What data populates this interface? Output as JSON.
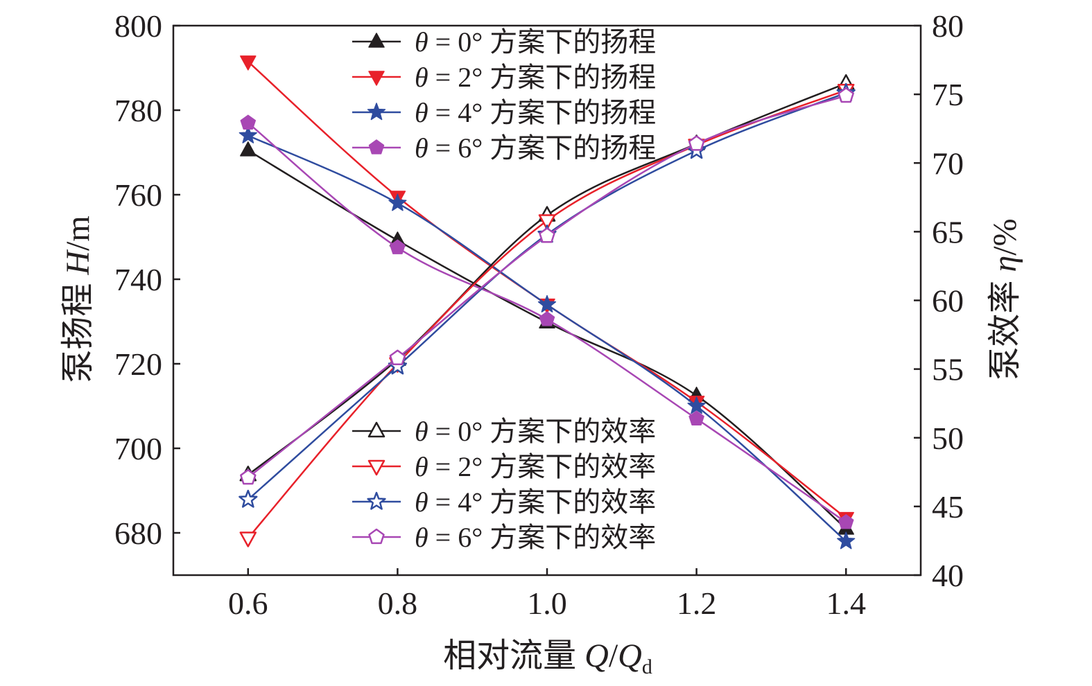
{
  "chart_data": {
    "type": "line",
    "x_label": {
      "prefix": "相对流量 ",
      "var1": "Q",
      "slash": "/",
      "var2": "Q",
      "sub": "d"
    },
    "y_left_label": {
      "prefix": "泵扬程 ",
      "var": "H",
      "unit": "/m"
    },
    "y_right_label": {
      "prefix": "泵效率 ",
      "var": "η",
      "unit": "/%"
    },
    "x": [
      0.6,
      0.8,
      1.0,
      1.2,
      1.4
    ],
    "x_ticks": [
      "0.6",
      "0.8",
      "1.0",
      "1.2",
      "1.4"
    ],
    "xlim": [
      0.5,
      1.5
    ],
    "y_left_ticks": [
      "680",
      "700",
      "720",
      "740",
      "760",
      "780",
      "800"
    ],
    "y_left_lim": [
      670,
      800
    ],
    "y_right_ticks": [
      "40",
      "45",
      "50",
      "55",
      "60",
      "65",
      "70",
      "75",
      "80"
    ],
    "y_right_lim": [
      40,
      80
    ],
    "head_series": [
      {
        "angle": "0°",
        "label": "方案下的扬程",
        "color": "#231f20",
        "marker": "triangle-up-filled",
        "values": [
          770.5,
          749.2,
          729.8,
          712.5,
          681.0
        ]
      },
      {
        "angle": "2°",
        "label": "方案下的扬程",
        "color": "#e8212a",
        "marker": "triangle-down-filled",
        "values": [
          791.5,
          759.5,
          734.0,
          711.0,
          683.5
        ]
      },
      {
        "angle": "4°",
        "label": "方案下的扬程",
        "color": "#2f4c9f",
        "marker": "star-filled",
        "values": [
          774.0,
          758.0,
          734.0,
          710.0,
          678.0
        ]
      },
      {
        "angle": "6°",
        "label": "方案下的扬程",
        "color": "#a847b4",
        "marker": "pentagon-filled",
        "values": [
          777.0,
          747.5,
          730.5,
          707.0,
          682.5
        ]
      }
    ],
    "efficiency_series": [
      {
        "angle": "0°",
        "label": "方案下的效率",
        "color": "#231f20",
        "marker": "triangle-up-open",
        "values": [
          47.3,
          55.7,
          66.2,
          71.4,
          75.8
        ]
      },
      {
        "angle": "2°",
        "label": "方案下的效率",
        "color": "#e8212a",
        "marker": "triangle-down-open",
        "values": [
          42.7,
          55.4,
          65.8,
          71.3,
          75.3
        ]
      },
      {
        "angle": "4°",
        "label": "方案下的效率",
        "color": "#2f4c9f",
        "marker": "star-open",
        "values": [
          45.5,
          55.2,
          64.8,
          70.9,
          75.1
        ]
      },
      {
        "angle": "6°",
        "label": "方案下的效率",
        "color": "#a847b4",
        "marker": "pentagon-open",
        "values": [
          47.1,
          55.8,
          64.7,
          71.4,
          74.9
        ]
      }
    ]
  }
}
